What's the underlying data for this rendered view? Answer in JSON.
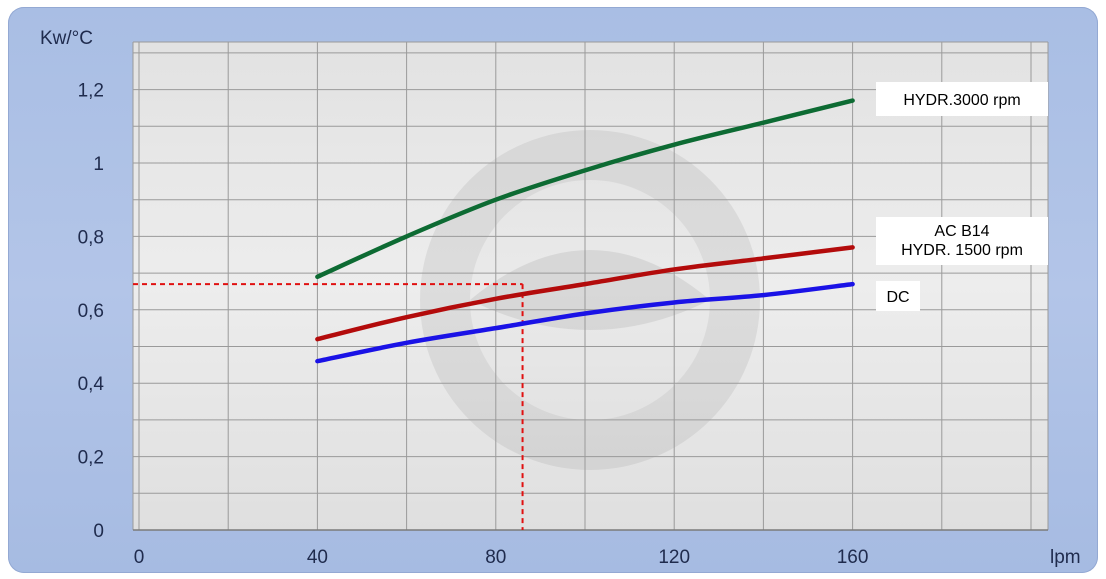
{
  "chart_data": {
    "type": "line",
    "ylabel": "Kw/°C",
    "xlabel": "lpm",
    "xlim": [
      0,
      200
    ],
    "ylim": [
      0,
      1.3
    ],
    "x_ticks": [
      0,
      40,
      80,
      120,
      160
    ],
    "x_tick_labels": [
      "0",
      "40",
      "80",
      "120",
      "160"
    ],
    "y_ticks": [
      0,
      0.2,
      0.4,
      0.6,
      0.8,
      1,
      1.2
    ],
    "y_tick_labels": [
      "0",
      "0,2",
      "0,4",
      "0,6",
      "0,8",
      "1",
      "1,2"
    ],
    "grid": true,
    "series": [
      {
        "name": "HYDR.3000 rpm",
        "color": "#0d6b33",
        "x": [
          40,
          60,
          80,
          100,
          120,
          140,
          160
        ],
        "y": [
          0.69,
          0.8,
          0.9,
          0.98,
          1.05,
          1.11,
          1.17
        ]
      },
      {
        "name": "AC B14 HYDR. 1500 rpm",
        "label_lines": [
          "AC B14",
          "HYDR. 1500 rpm"
        ],
        "color": "#b30b0b",
        "x": [
          40,
          60,
          80,
          100,
          120,
          140,
          160
        ],
        "y": [
          0.52,
          0.58,
          0.63,
          0.67,
          0.71,
          0.74,
          0.77
        ]
      },
      {
        "name": "DC",
        "color": "#1a12e6",
        "x": [
          40,
          60,
          80,
          100,
          120,
          140,
          160
        ],
        "y": [
          0.46,
          0.51,
          0.55,
          0.59,
          0.62,
          0.64,
          0.67
        ]
      }
    ],
    "reference_lines": {
      "color": "#e01010",
      "x": 86,
      "y": 0.67
    }
  }
}
